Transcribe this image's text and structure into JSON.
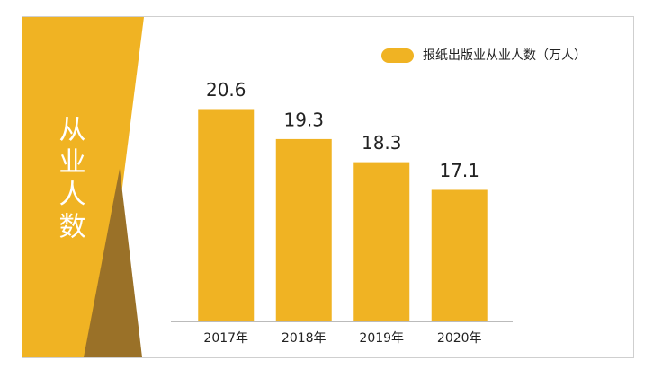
{
  "chart_data": {
    "type": "bar",
    "title": "从业人数",
    "categories": [
      "2017年",
      "2018年",
      "2019年",
      "2020年"
    ],
    "series": [
      {
        "name": "报纸出版业从业人数（万人）",
        "color": "#f0b323",
        "values": [
          20.6,
          19.3,
          18.3,
          17.1
        ]
      }
    ],
    "ylim": [
      11.4,
      22
    ],
    "grid": false,
    "legend": "top-right"
  }
}
